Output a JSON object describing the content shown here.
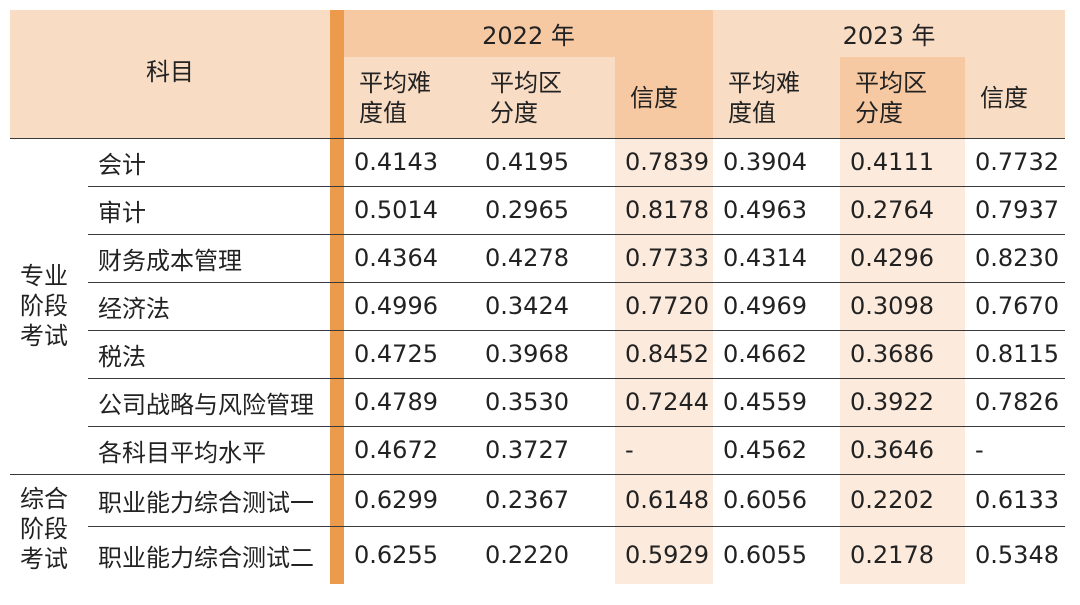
{
  "header": {
    "subject_label": "科目",
    "year_2022": "2022 年",
    "year_2023": "2023 年",
    "metrics": [
      "平均难度值",
      "平均区分度",
      "信度"
    ]
  },
  "groups": [
    {
      "label": "专业阶段考试",
      "rows": [
        {
          "subject": "会计",
          "values": [
            "0.4143",
            "0.4195",
            "0.7839",
            "0.3904",
            "0.4111",
            "0.7732"
          ]
        },
        {
          "subject": "审计",
          "values": [
            "0.5014",
            "0.2965",
            "0.8178",
            "0.4963",
            "0.2764",
            "0.7937"
          ]
        },
        {
          "subject": "财务成本管理",
          "values": [
            "0.4364",
            "0.4278",
            "0.7733",
            "0.4314",
            "0.4296",
            "0.8230"
          ]
        },
        {
          "subject": "经济法",
          "values": [
            "0.4996",
            "0.3424",
            "0.7720",
            "0.4969",
            "0.3098",
            "0.7670"
          ]
        },
        {
          "subject": "税法",
          "values": [
            "0.4725",
            "0.3968",
            "0.8452",
            "0.4662",
            "0.3686",
            "0.8115"
          ]
        },
        {
          "subject": "公司战略与风险管理",
          "values": [
            "0.4789",
            "0.3530",
            "0.7244",
            "0.4559",
            "0.3922",
            "0.7826"
          ]
        },
        {
          "subject": "各科目平均水平",
          "values": [
            "0.4672",
            "0.3727",
            "-",
            "0.4562",
            "0.3646",
            "-"
          ]
        }
      ]
    },
    {
      "label": "综合阶段考试",
      "rows": [
        {
          "subject": "职业能力综合测试一",
          "values": [
            "0.6299",
            "0.2367",
            "0.6148",
            "0.6056",
            "0.2202",
            "0.6133"
          ]
        },
        {
          "subject": "职业能力综合测试二",
          "values": [
            "0.6255",
            "0.2220",
            "0.5929",
            "0.6055",
            "0.2178",
            "0.5348"
          ]
        }
      ]
    }
  ],
  "colors": {
    "header_light": "#f8dcc4",
    "header_mid": "#f6c9a3",
    "body_shade": "#fcebdd",
    "accent_bar": "#ec9a4c",
    "rule": "#3a3a3a"
  }
}
